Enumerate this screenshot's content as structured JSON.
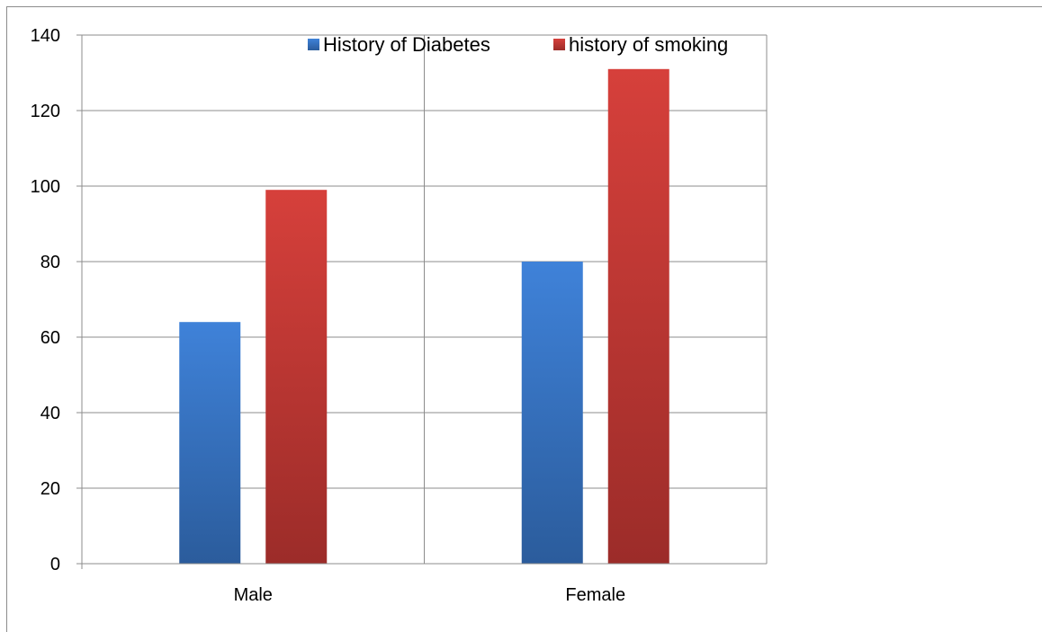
{
  "chart_data": {
    "type": "bar",
    "categories": [
      "Male",
      "Female"
    ],
    "series": [
      {
        "name": "History of Diabetes",
        "values": [
          64,
          80
        ],
        "color": "#3a78c8"
      },
      {
        "name": "history of smoking",
        "values": [
          99,
          131
        ],
        "color": "#c43a36"
      }
    ],
    "ylim": [
      0,
      140
    ],
    "yticks": [
      "0",
      "20",
      "40",
      "60",
      "80",
      "100",
      "120",
      "140"
    ],
    "grid": true,
    "legend_position": "top"
  }
}
